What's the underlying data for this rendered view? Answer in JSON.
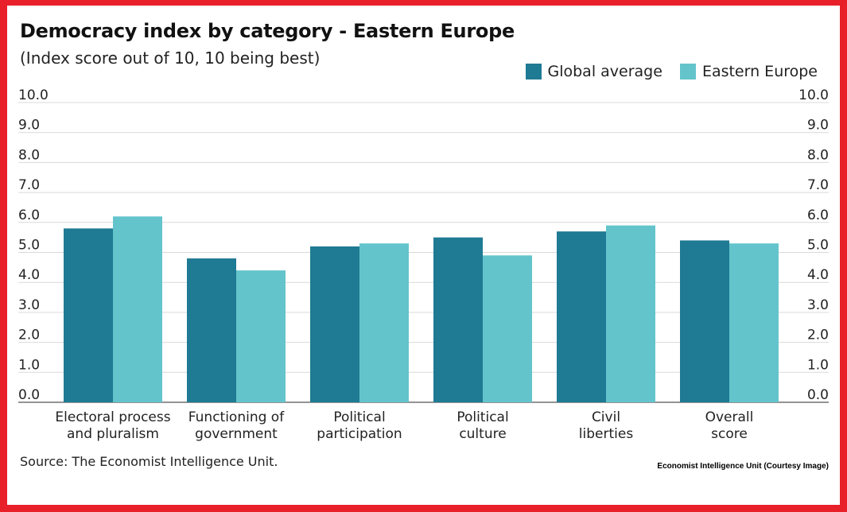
{
  "header": {
    "title": "Democracy index by category - Eastern Europe",
    "subtitle": "(Index score out of 10, 10 being best)"
  },
  "footer": {
    "source": "Source: The Economist Intelligence Unit.",
    "credit": "Economist Intelligence Unit (Courtesy Image)"
  },
  "colors": {
    "global": "#1f7a93",
    "eastern": "#63c4cc"
  },
  "chart_data": {
    "type": "bar",
    "title": "Democracy index by category - Eastern Europe",
    "subtitle": "(Index score out of 10, 10 being best)",
    "xlabel": "",
    "ylabel": "",
    "ylim": [
      0,
      10
    ],
    "yticks": [
      "0.0",
      "1.0",
      "2.0",
      "3.0",
      "4.0",
      "5.0",
      "6.0",
      "7.0",
      "8.0",
      "9.0",
      "10.0"
    ],
    "grid": true,
    "legend": "top-right",
    "categories": [
      [
        "Electoral process",
        "and pluralism"
      ],
      [
        "Functioning of",
        "government"
      ],
      [
        "Political",
        "participation"
      ],
      [
        "Political",
        "culture"
      ],
      [
        "Civil",
        "liberties"
      ],
      [
        "Overall",
        "score"
      ]
    ],
    "series": [
      {
        "name": "Global average",
        "values": [
          5.8,
          4.8,
          5.2,
          5.5,
          5.7,
          5.4
        ]
      },
      {
        "name": "Eastern Europe",
        "values": [
          6.2,
          4.4,
          5.3,
          4.9,
          5.9,
          5.3
        ]
      }
    ]
  }
}
